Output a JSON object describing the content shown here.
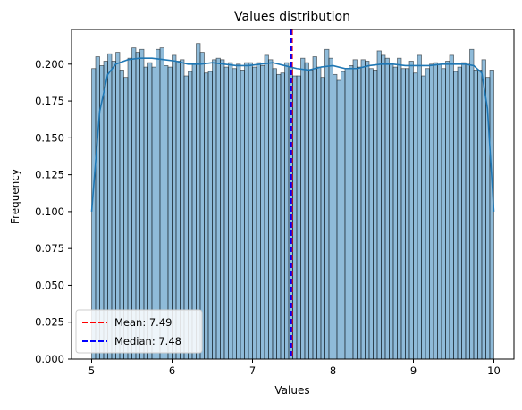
{
  "chart_data": {
    "type": "bar",
    "subtype": "histogram-with-kde",
    "title": "Values distribution",
    "xlabel": "Values",
    "ylabel": "Frequency",
    "xlim": [
      4.75,
      10.25
    ],
    "ylim": [
      0,
      0.2235
    ],
    "xticks": [
      5,
      6,
      7,
      8,
      9,
      10
    ],
    "xtick_labels": [
      "5",
      "6",
      "7",
      "8",
      "9",
      "10"
    ],
    "yticks": [
      0,
      0.025,
      0.05,
      0.075,
      0.1,
      0.125,
      0.15,
      0.175,
      0.2
    ],
    "ytick_labels": [
      "0.000",
      "0.025",
      "0.050",
      "0.075",
      "0.100",
      "0.125",
      "0.150",
      "0.175",
      "0.200"
    ],
    "bin_start": 5,
    "bin_width": 0.05,
    "bar_color": "#1f77b4",
    "frequencies": [
      0.197,
      0.205,
      0.199,
      0.202,
      0.207,
      0.202,
      0.208,
      0.196,
      0.191,
      0.204,
      0.211,
      0.208,
      0.21,
      0.198,
      0.201,
      0.198,
      0.21,
      0.211,
      0.199,
      0.198,
      0.206,
      0.202,
      0.203,
      0.192,
      0.195,
      0.2,
      0.214,
      0.208,
      0.194,
      0.195,
      0.203,
      0.204,
      0.203,
      0.198,
      0.201,
      0.197,
      0.2,
      0.196,
      0.201,
      0.201,
      0.198,
      0.201,
      0.199,
      0.206,
      0.203,
      0.197,
      0.193,
      0.194,
      0.201,
      0.198,
      0.192,
      0.192,
      0.204,
      0.201,
      0.196,
      0.205,
      0.198,
      0.191,
      0.21,
      0.204,
      0.193,
      0.189,
      0.195,
      0.197,
      0.199,
      0.203,
      0.198,
      0.203,
      0.202,
      0.197,
      0.196,
      0.209,
      0.206,
      0.204,
      0.2,
      0.198,
      0.204,
      0.197,
      0.197,
      0.202,
      0.194,
      0.206,
      0.192,
      0.197,
      0.2,
      0.201,
      0.2,
      0.197,
      0.202,
      0.206,
      0.195,
      0.198,
      0.201,
      0.2,
      0.21,
      0.196,
      0.196,
      0.203,
      0.191,
      0.196
    ],
    "kde": {
      "x": [
        5.0,
        5.1,
        5.2,
        5.3,
        5.45,
        5.6,
        5.75,
        5.9,
        6.05,
        6.2,
        6.35,
        6.5,
        6.65,
        6.8,
        6.95,
        7.1,
        7.25,
        7.4,
        7.55,
        7.7,
        7.85,
        8.0,
        8.15,
        8.3,
        8.45,
        8.6,
        8.75,
        8.9,
        9.05,
        9.2,
        9.35,
        9.5,
        9.65,
        9.75,
        9.85,
        9.92,
        10.0
      ],
      "y": [
        0.1,
        0.168,
        0.193,
        0.2,
        0.203,
        0.204,
        0.204,
        0.203,
        0.202,
        0.2,
        0.2,
        0.201,
        0.2,
        0.199,
        0.199,
        0.2,
        0.201,
        0.199,
        0.197,
        0.196,
        0.198,
        0.199,
        0.197,
        0.197,
        0.199,
        0.2,
        0.2,
        0.199,
        0.199,
        0.199,
        0.2,
        0.2,
        0.2,
        0.199,
        0.194,
        0.17,
        0.1
      ],
      "color": "#1f77b4"
    },
    "vlines": [
      {
        "label": "Mean: 7.49",
        "x": 7.49,
        "color": "#ff0000",
        "style": "dashed"
      },
      {
        "label": "Median: 7.48",
        "x": 7.48,
        "color": "#0000ff",
        "style": "dashed"
      }
    ],
    "legend_position": "lower-left",
    "grid": false
  }
}
